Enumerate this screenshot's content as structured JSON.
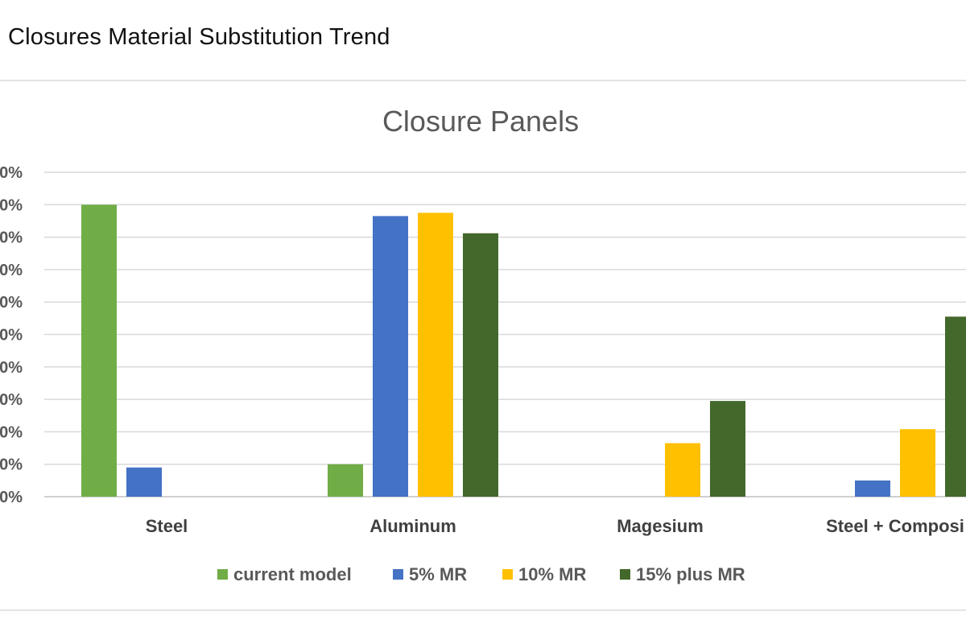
{
  "page_title": "Closures Material Substitution Trend",
  "chart_data": {
    "type": "bar",
    "title": "Closure Panels",
    "xlabel": "",
    "ylabel": "",
    "categories": [
      "Steel",
      "Aluminum",
      "Magesium",
      "Steel + Composi"
    ],
    "y_tick_labels": [
      "0%",
      "0%",
      "0%",
      "0%",
      "0%",
      "0%",
      "0%",
      "0%",
      "0%",
      "0%",
      "0%"
    ],
    "ylim": [
      0,
      10
    ],
    "grid": true,
    "legend_position": "bottom",
    "series": [
      {
        "name": "current model",
        "color": "#70AD47",
        "values": [
          9.0,
          1.0,
          0,
          0
        ]
      },
      {
        "name": "5% MR",
        "color": "#4472C4",
        "values": [
          0.9,
          8.65,
          0,
          0.5
        ]
      },
      {
        "name": "10% MR",
        "color": "#FFC000",
        "values": [
          0,
          8.75,
          1.65,
          2.08
        ]
      },
      {
        "name": "15% plus MR",
        "color": "#43682B",
        "values": [
          0,
          8.12,
          2.95,
          5.55
        ]
      }
    ]
  }
}
